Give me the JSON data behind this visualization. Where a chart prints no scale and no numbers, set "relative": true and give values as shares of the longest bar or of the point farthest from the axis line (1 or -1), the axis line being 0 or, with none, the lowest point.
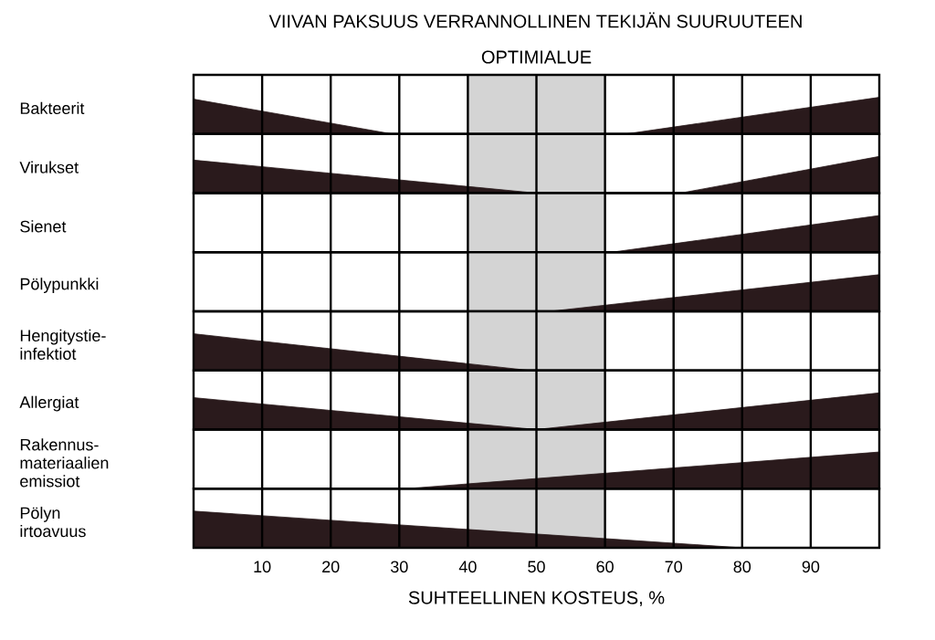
{
  "chart_data": [
    {
      "type": "area",
      "relative": true,
      "title": "VIIVAN PAKSUUS VERRANNOLLINEN TEKIJÄN SUURUUTEEN",
      "ylabel": "Bakteerit",
      "xlim": [
        0,
        100
      ],
      "xticks": [
        10,
        20,
        30,
        40,
        50,
        60,
        70,
        80,
        90
      ],
      "grid": "x",
      "tick_labels": false,
      "bands": [
        {
          "axis": "x",
          "from": 40,
          "to": 60,
          "label": "OPTIMIALUE",
          "color": "#d4d4d4"
        }
      ],
      "x": [
        0,
        29,
        63,
        100
      ],
      "values": [
        0.95,
        0,
        0,
        1
      ],
      "color": "#2a1a1c"
    },
    {
      "type": "area",
      "relative": true,
      "ylabel": "Virukset",
      "xlim": [
        0,
        100
      ],
      "xticks": [
        10,
        20,
        30,
        40,
        50,
        60,
        70,
        80,
        90
      ],
      "grid": "x",
      "tick_labels": false,
      "bands": [
        {
          "axis": "x",
          "from": 40,
          "to": 60,
          "color": "#d4d4d4"
        }
      ],
      "x": [
        0,
        50,
        71,
        100
      ],
      "values": [
        0.9,
        0,
        0,
        1
      ],
      "color": "#2a1a1c"
    },
    {
      "type": "area",
      "relative": true,
      "ylabel": "Sienet",
      "xlim": [
        0,
        100
      ],
      "xticks": [
        10,
        20,
        30,
        40,
        50,
        60,
        70,
        80,
        90
      ],
      "grid": "x",
      "tick_labels": false,
      "bands": [
        {
          "axis": "x",
          "from": 40,
          "to": 60,
          "color": "#d4d4d4"
        }
      ],
      "x": [
        61,
        100
      ],
      "values": [
        0,
        1
      ],
      "color": "#2a1a1c"
    },
    {
      "type": "area",
      "relative": true,
      "ylabel": "Pölypunkki",
      "xlim": [
        0,
        100
      ],
      "xticks": [
        10,
        20,
        30,
        40,
        50,
        60,
        70,
        80,
        90
      ],
      "grid": "x",
      "tick_labels": false,
      "bands": [
        {
          "axis": "x",
          "from": 40,
          "to": 60,
          "color": "#d4d4d4"
        }
      ],
      "x": [
        52,
        100
      ],
      "values": [
        0,
        1
      ],
      "color": "#2a1a1c"
    },
    {
      "type": "area",
      "relative": true,
      "ylabel": "Hengitystie-infektiot",
      "xlim": [
        0,
        100
      ],
      "xticks": [
        10,
        20,
        30,
        40,
        50,
        60,
        70,
        80,
        90
      ],
      "grid": "x",
      "tick_labels": false,
      "bands": [
        {
          "axis": "x",
          "from": 40,
          "to": 60,
          "color": "#d4d4d4"
        }
      ],
      "x": [
        0,
        49
      ],
      "values": [
        1,
        0
      ],
      "color": "#2a1a1c"
    },
    {
      "type": "area",
      "relative": true,
      "ylabel": "Allergiat",
      "xlim": [
        0,
        100
      ],
      "xticks": [
        10,
        20,
        30,
        40,
        50,
        60,
        70,
        80,
        90
      ],
      "grid": "x",
      "tick_labels": false,
      "bands": [
        {
          "axis": "x",
          "from": 40,
          "to": 60,
          "color": "#d4d4d4"
        }
      ],
      "x": [
        0,
        50,
        100
      ],
      "values": [
        0.87,
        0,
        1
      ],
      "color": "#2a1a1c"
    },
    {
      "type": "area",
      "relative": true,
      "ylabel": "Rakennus-materiaalien emissiot",
      "xlim": [
        0,
        100
      ],
      "xticks": [
        10,
        20,
        30,
        40,
        50,
        60,
        70,
        80,
        90
      ],
      "grid": "x",
      "tick_labels": false,
      "bands": [
        {
          "axis": "x",
          "from": 40,
          "to": 60,
          "color": "#d4d4d4"
        }
      ],
      "x": [
        31,
        100
      ],
      "values": [
        0,
        1
      ],
      "color": "#2a1a1c"
    },
    {
      "type": "area",
      "relative": true,
      "ylabel": "Pölyn irtoavuus",
      "xlabel": "SUHTEELLINEN KOSTEUS, %",
      "xlim": [
        0,
        100
      ],
      "xticks": [
        10,
        20,
        30,
        40,
        50,
        60,
        70,
        80,
        90
      ],
      "grid": "x",
      "tick_labels": "x",
      "bands": [
        {
          "axis": "x",
          "from": 40,
          "to": 60,
          "color": "#d4d4d4"
        }
      ],
      "x": [
        0,
        80
      ],
      "values": [
        1,
        0
      ],
      "color": "#2a1a1c"
    }
  ]
}
